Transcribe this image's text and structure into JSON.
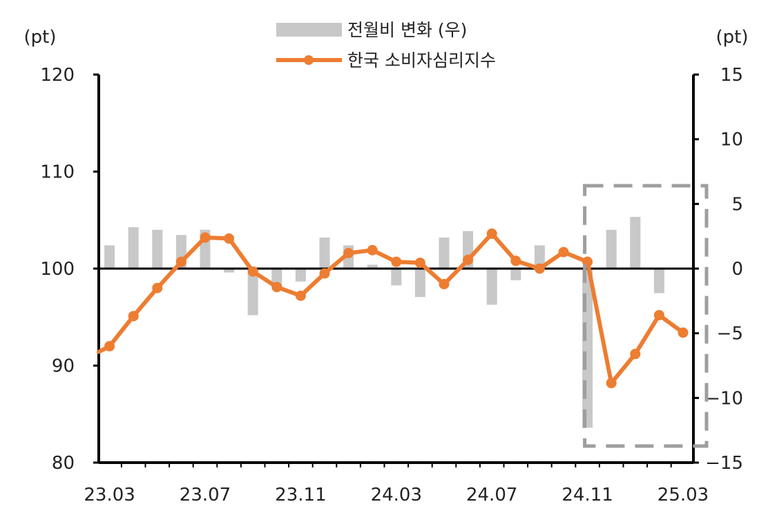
{
  "chart_data": {
    "type": "bar+line",
    "legend": [
      {
        "label": "전월비 변화 (우)",
        "kind": "bar"
      },
      {
        "label": "한국 소비자심리지수",
        "kind": "line"
      }
    ],
    "units": {
      "left": "(pt)",
      "right": "(pt)"
    },
    "left_axis": {
      "min": 80,
      "max": 120,
      "ticks": [
        80,
        90,
        100,
        110,
        120
      ]
    },
    "right_axis": {
      "min": -15,
      "max": 15,
      "ticks": [
        -15,
        -10,
        -5,
        0,
        5,
        10,
        15
      ]
    },
    "x_tick_labels": [
      "23.03",
      "23.07",
      "23.11",
      "24.03",
      "24.07",
      "24.11",
      "25.03"
    ],
    "x": [
      "23.02",
      "23.03",
      "23.04",
      "23.05",
      "23.06",
      "23.07",
      "23.08",
      "23.09",
      "23.10",
      "23.11",
      "23.12",
      "24.01",
      "24.02",
      "24.03",
      "24.04",
      "24.05",
      "24.06",
      "24.07",
      "24.08",
      "24.09",
      "24.10",
      "24.11",
      "24.12",
      "25.01",
      "25.02",
      "25.03"
    ],
    "series": [
      {
        "name": "전월비 변화 (우)",
        "type": "bar",
        "axis": "right",
        "color": "#c8c8c8",
        "values": [
          null,
          1.8,
          3.2,
          3.0,
          2.6,
          3.0,
          -0.3,
          -3.6,
          -1.3,
          -1.0,
          2.4,
          1.8,
          0.3,
          -1.3,
          -2.2,
          2.4,
          2.9,
          -2.8,
          -0.9,
          1.8,
          0,
          -12.3,
          3.0,
          4.0,
          -1.9,
          null
        ]
      },
      {
        "name": "한국 소비자심리지수",
        "type": "line",
        "axis": "left",
        "color": "#ed7d31",
        "values": [
          90.7,
          92.0,
          95.1,
          98.0,
          100.7,
          103.2,
          103.1,
          99.7,
          98.1,
          97.2,
          99.5,
          101.6,
          101.9,
          100.7,
          100.6,
          98.4,
          100.9,
          103.6,
          100.8,
          100.0,
          101.7,
          100.7,
          88.2,
          91.2,
          95.2,
          93.4
        ]
      }
    ],
    "annotations": [
      {
        "type": "dashed-box",
        "from": "24.11",
        "to": "25.03",
        "color": "#9e9e9e"
      }
    ]
  }
}
